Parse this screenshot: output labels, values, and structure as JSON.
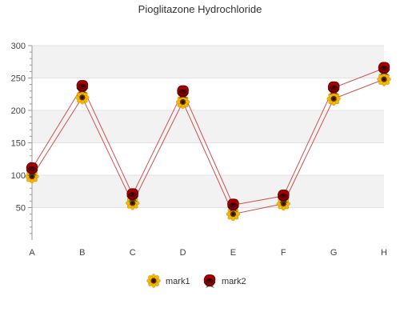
{
  "chart_data": {
    "type": "line",
    "title": "Pioglitazone Hydrochloride",
    "categories": [
      "A",
      "B",
      "C",
      "D",
      "E",
      "F",
      "G",
      "H"
    ],
    "series": [
      {
        "name": "mark1",
        "values": [
          98,
          220,
          57,
          213,
          40,
          56,
          218,
          248
        ],
        "marker": "sunflower-icon",
        "color": "#e0a000"
      },
      {
        "name": "mark2",
        "values": [
          110,
          237,
          70,
          229,
          54,
          68,
          235,
          265
        ],
        "marker": "red-rose-icon",
        "color": "#b00000"
      }
    ],
    "line_color": "#d05050",
    "ylim": [
      0,
      300
    ],
    "yticks": [
      50,
      100,
      150,
      200,
      250,
      300
    ],
    "grid": true,
    "legend": "bottom-center"
  }
}
